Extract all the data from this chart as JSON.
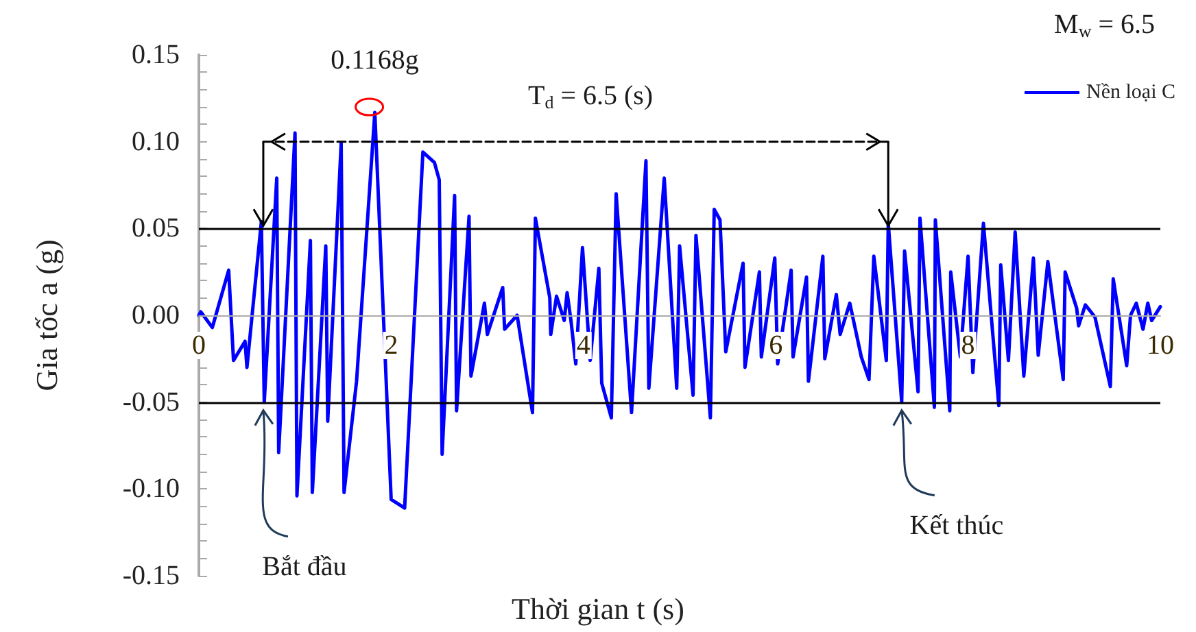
{
  "chart_data": {
    "type": "line",
    "xlabel": "Thời gian t (s)",
    "ylabel": "Gia tốc a (g)",
    "xlim": [
      0,
      10
    ],
    "xticks": [
      0,
      2,
      4,
      6,
      8,
      10
    ],
    "ylim": [
      -0.15,
      0.15
    ],
    "yticks": [
      {
        "value": -0.15,
        "label": "-0.15"
      },
      {
        "value": -0.1,
        "label": "-0.10"
      },
      {
        "value": -0.05,
        "label": "-0.05"
      },
      {
        "value": 0,
        "label": "0.00"
      },
      {
        "value": 0.05,
        "label": "0.05"
      },
      {
        "value": 0.1,
        "label": "0.10"
      },
      {
        "value": 0.15,
        "label": "0.15"
      }
    ],
    "grid": false,
    "legend": "top right",
    "marker": "none",
    "line_style": "solid",
    "series": [
      {
        "name": "Nền loại C",
        "color": "#0000ff",
        "x": [
          0,
          0.02,
          0.14,
          0.31,
          0.36,
          0.48,
          0.5,
          0.65,
          0.68,
          0.81,
          0.83,
          1.0,
          1.02,
          1.16,
          1.18,
          1.32,
          1.34,
          1.48,
          1.51,
          1.64,
          1.83,
          2.0,
          2.14,
          2.33,
          2.45,
          2.5,
          2.53,
          2.66,
          2.68,
          2.81,
          2.83,
          2.97,
          3.0,
          3.16,
          3.18,
          3.31,
          3.47,
          3.5,
          3.65,
          3.66,
          3.72,
          3.8,
          3.83,
          3.87,
          3.92,
          3.99,
          4.07,
          4.16,
          4.19,
          4.29,
          4.34,
          4.5,
          4.65,
          4.68,
          4.84,
          4.97,
          5.0,
          5.14,
          5.17,
          5.32,
          5.36,
          5.42,
          5.48,
          5.66,
          5.68,
          5.83,
          5.85,
          5.99,
          6.02,
          6.16,
          6.18,
          6.32,
          6.34,
          6.49,
          6.51,
          6.63,
          6.67,
          6.77,
          6.89,
          6.97,
          7.02,
          7.15,
          7.17,
          7.31,
          7.34,
          7.48,
          7.5,
          7.65,
          7.66,
          7.81,
          7.82,
          7.92,
          8.0,
          8.05,
          8.16,
          8.32,
          8.34,
          8.42,
          8.49,
          8.58,
          8.68,
          8.73,
          8.83,
          8.99,
          9.01,
          9.13,
          9.15,
          9.22,
          9.32,
          9.48,
          9.51,
          9.65,
          9.69,
          9.75,
          9.82,
          9.87,
          9.91,
          10.0
        ],
        "values": [
          0,
          0.002,
          -0.007,
          0.026,
          -0.026,
          -0.015,
          -0.03,
          0.054,
          -0.05,
          0.079,
          -0.079,
          0.105,
          -0.104,
          0.043,
          -0.102,
          0.04,
          -0.061,
          0.099,
          -0.102,
          -0.038,
          0.1168,
          -0.106,
          -0.111,
          0.094,
          0.088,
          0.078,
          -0.08,
          0.069,
          -0.055,
          0.057,
          -0.035,
          0.007,
          -0.011,
          0.016,
          -0.008,
          0,
          -0.056,
          0.056,
          0.01,
          -0.011,
          0.011,
          -0.003,
          0.013,
          -0.003,
          -0.028,
          0.039,
          -0.026,
          0.027,
          -0.039,
          -0.059,
          0.07,
          -0.056,
          0.089,
          -0.042,
          0.079,
          -0.042,
          0.04,
          -0.046,
          0.046,
          -0.059,
          0.061,
          0.055,
          -0.021,
          0.03,
          -0.03,
          0.025,
          -0.024,
          0.033,
          -0.028,
          0.026,
          -0.024,
          0.022,
          -0.038,
          0.034,
          -0.025,
          0.012,
          -0.011,
          0.007,
          -0.024,
          -0.037,
          0.034,
          -0.026,
          0.053,
          -0.05,
          0.037,
          -0.044,
          0.056,
          -0.053,
          0.055,
          -0.055,
          0.025,
          -0.024,
          0.034,
          -0.033,
          0.053,
          -0.052,
          0.029,
          -0.026,
          0.048,
          -0.035,
          0.033,
          -0.023,
          0.031,
          -0.037,
          0.025,
          0.004,
          -0.006,
          0.006,
          -0.001,
          -0.041,
          0.021,
          -0.029,
          0,
          0.007,
          -0.008,
          0.007,
          -0.003,
          0.005
        ]
      },
      {
        "type": "line",
        "color": "#000000",
        "line_style": "dashed",
        "x": [
          0.67,
          7.17
        ],
        "values": [
          0.1,
          0.1
        ]
      }
    ],
    "ref_lines": [
      {
        "axis": "y",
        "value": 0.05,
        "color": "#000000",
        "line_style": "solid"
      },
      {
        "axis": "y",
        "value": -0.05,
        "color": "#000000",
        "line_style": "solid"
      }
    ],
    "annotations": [
      {
        "text": "0.1168g",
        "x": 1.83,
        "y": 0.1168
      },
      "T$_{d}$ = 6.5 (s)",
      {
        "text": "Bắt đầu",
        "x": 0.67,
        "y": -0.05
      },
      {
        "text": "Kết thúc",
        "x": 7.31,
        "y": -0.05
      },
      "M$_{w}$ = 6.5"
    ]
  }
}
